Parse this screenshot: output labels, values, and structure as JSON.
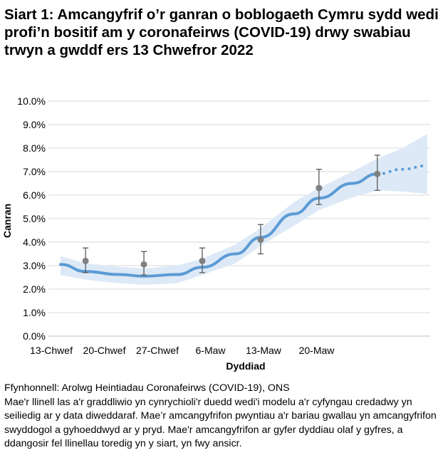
{
  "title": "Siart 1: Amcangyfrif o’r ganran o boblogaeth Cymru sydd wedi profi’n bositif am y coronafeirws (COVID-19) drwy swabiau trwyn a gwddf ers 13 Chwefror 2022",
  "source": "Ffynhonnell: Arolwg Heintiadau Coronafeirws (COVID-19), ONS",
  "notes": "Mae'r llinell las a'r graddliwio yn cynrychioli'r duedd wedi'i modelu a'r cyfyngau credadwy yn seiliedig ar y data diweddaraf. Mae’r amcangyfrifon pwyntiau a'r bariau gwallau yn amcangyfrifon swyddogol a gyhoeddwyd ar y pryd. Mae'r amcangyfrifon ar gyfer dyddiau olaf y gyfres, a ddangosir fel llinellau toredig yn y siart, yn fwy ansicr.",
  "chart_data": {
    "type": "line",
    "xlabel": "Dyddiad",
    "ylabel": "Canran",
    "x_tick_labels": [
      "13-Chwef",
      "20-Chwef",
      "27-Chwef",
      "6-Maw",
      "13-Maw",
      "20-Maw"
    ],
    "y_tick_labels": [
      "0.0%",
      "1.0%",
      "2.0%",
      "3.0%",
      "4.0%",
      "5.0%",
      "6.0%",
      "7.0%",
      "8.0%",
      "9.0%",
      "10.0%"
    ],
    "ylim": [
      0,
      10
    ],
    "xlim": [
      "2022-02-13",
      "2022-03-29"
    ],
    "grid": true,
    "colors": {
      "trend": "#5b9bd5",
      "band": "#dde9f6",
      "points": "#808080",
      "errorbars": "#595959",
      "grid": "#d9d9d9"
    },
    "trend": {
      "x": [
        "2022-02-13",
        "2022-02-16",
        "2022-02-20",
        "2022-02-23",
        "2022-02-27",
        "2022-03-02",
        "2022-03-06",
        "2022-03-09",
        "2022-03-13",
        "2022-03-16",
        "2022-03-20",
        "2022-03-23",
        "2022-03-26",
        "2022-03-29"
      ],
      "y": [
        3.05,
        2.75,
        2.62,
        2.55,
        2.62,
        2.93,
        3.5,
        4.2,
        5.2,
        5.87,
        6.5,
        6.9,
        7.1,
        7.25
      ],
      "lower": [
        2.6,
        2.4,
        2.25,
        2.18,
        2.25,
        2.6,
        3.1,
        3.85,
        4.7,
        5.36,
        5.9,
        6.2,
        6.15,
        6.05
      ],
      "upper": [
        3.4,
        3.1,
        2.95,
        2.88,
        3.0,
        3.3,
        3.9,
        4.6,
        5.7,
        6.3,
        7.0,
        7.55,
        8.0,
        8.6
      ],
      "dotted_from": "2022-03-23"
    },
    "points": {
      "x": [
        "2022-02-16",
        "2022-02-23",
        "2022-03-02",
        "2022-03-09",
        "2022-03-16",
        "2022-03-23"
      ],
      "y": [
        3.2,
        3.05,
        3.2,
        4.1,
        6.3,
        6.9
      ],
      "lower": [
        2.7,
        2.6,
        2.7,
        3.5,
        5.6,
        6.2
      ],
      "upper": [
        3.75,
        3.6,
        3.75,
        4.75,
        7.1,
        7.7
      ]
    }
  }
}
